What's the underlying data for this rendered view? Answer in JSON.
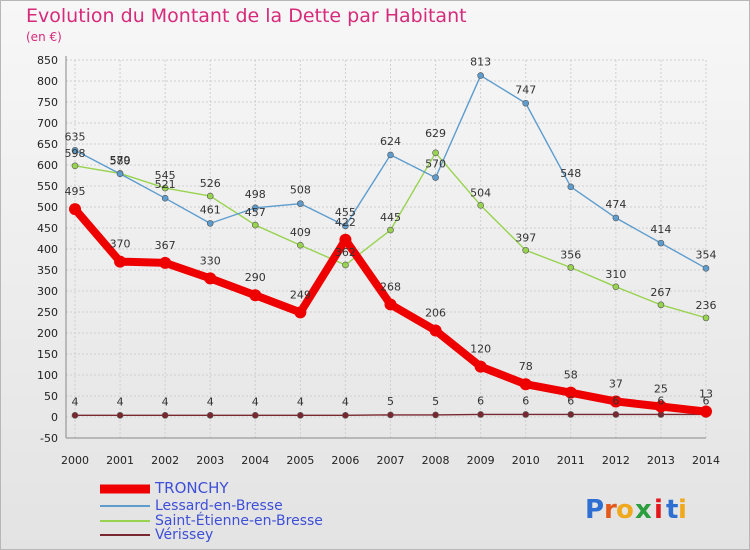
{
  "chart_data": {
    "type": "line",
    "title": "Evolution du Montant de la Dette par Habitant",
    "subtitle": "(en €)",
    "x": [
      "2000",
      "2001",
      "2002",
      "2003",
      "2004",
      "2005",
      "2006",
      "2007",
      "2008",
      "2009",
      "2010",
      "2011",
      "2012",
      "2013",
      "2014"
    ],
    "ylim": [
      -50,
      850
    ],
    "yticks": [
      -50,
      0,
      50,
      100,
      150,
      200,
      250,
      300,
      350,
      400,
      450,
      500,
      550,
      600,
      650,
      700,
      750,
      800,
      850
    ],
    "grid": true,
    "legend_placement": "bottom-left",
    "series": [
      {
        "name": "TRONCHY",
        "color": "#ee0000",
        "values": [
          495,
          370,
          367,
          330,
          290,
          249,
          422,
          268,
          206,
          120,
          78,
          58,
          37,
          25,
          13
        ]
      },
      {
        "name": "Lessard-en-Bresse",
        "color": "#5d9ccd",
        "values": [
          635,
          579,
          521,
          461,
          498,
          508,
          455,
          624,
          570,
          813,
          747,
          548,
          474,
          414,
          354
        ]
      },
      {
        "name": "Saint-Étienne-en-Bresse",
        "color": "#98d34f",
        "values": [
          598,
          580,
          545,
          526,
          457,
          409,
          362,
          445,
          629,
          504,
          397,
          356,
          310,
          267,
          236
        ]
      },
      {
        "name": "Vérissey",
        "color": "#7a2830",
        "values": [
          4,
          4,
          4,
          4,
          4,
          4,
          4,
          5,
          5,
          6,
          6,
          6,
          6,
          6,
          6
        ]
      }
    ]
  },
  "logo": {
    "text": "Proxiti",
    "letters": [
      "P",
      "r",
      "o",
      "x",
      "i",
      "t",
      "i"
    ]
  },
  "colors": {
    "title": "#d62a7a",
    "legend_text": "#3e4fd8",
    "axis_text": "#222222",
    "grid": "#cfcfcf"
  }
}
